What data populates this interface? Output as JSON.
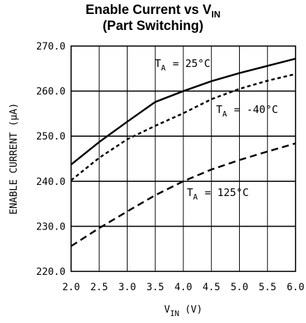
{
  "chart_data": {
    "type": "line",
    "title_main": "Enable Current vs V",
    "title_sub": "IN",
    "subtitle": "(Part Switching)",
    "xlabel_main": "V",
    "xlabel_sub": "IN",
    "xlabel_unit": "(V)",
    "ylabel": "ENABLE CURRENT (µA)",
    "xlim": [
      2.0,
      6.0
    ],
    "ylim": [
      220.0,
      270.0
    ],
    "x_ticks": [
      "2.0",
      "2.5",
      "3.0",
      "3.5",
      "4.0",
      "4.5",
      "5.0",
      "5.5",
      "6.0"
    ],
    "y_ticks": [
      "270.0",
      "260.0",
      "250.0",
      "240.0",
      "230.0",
      "220.0"
    ],
    "grid": true,
    "series": [
      {
        "name": "T_A = 25°C",
        "label_main": "T",
        "label_sub": "A",
        "label_rest": "= 25°C",
        "style": "solid",
        "x": [
          2.0,
          2.5,
          3.0,
          3.5,
          4.0,
          4.5,
          5.0,
          5.5,
          6.0
        ],
        "y": [
          243.7,
          248.7,
          253.2,
          257.6,
          260.0,
          262.2,
          264.0,
          265.6,
          267.2
        ]
      },
      {
        "name": "T_A = -40°C",
        "label_main": "T",
        "label_sub": "A",
        "label_rest": "= -40°C",
        "style": "dotted",
        "x": [
          2.0,
          2.5,
          3.0,
          3.5,
          4.0,
          4.5,
          5.0,
          5.5,
          6.0
        ],
        "y": [
          240.2,
          245.2,
          249.3,
          252.3,
          255.1,
          258.2,
          260.5,
          262.3,
          263.8
        ]
      },
      {
        "name": "T_A = 125°C",
        "label_main": "T",
        "label_sub": "A",
        "label_rest": "= 125°C",
        "style": "dashed",
        "x": [
          2.0,
          2.5,
          3.0,
          3.5,
          4.0,
          4.5,
          5.0,
          5.5,
          6.0
        ],
        "y": [
          225.6,
          229.6,
          233.3,
          236.9,
          240.0,
          242.6,
          244.7,
          246.6,
          248.4
        ]
      }
    ]
  }
}
